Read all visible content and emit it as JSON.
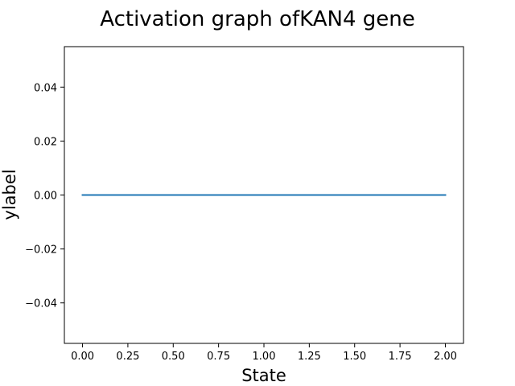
{
  "chart_data": {
    "type": "line",
    "title": "Activation graph ofKAN4 gene",
    "xlabel": "State",
    "ylabel": "ylabel",
    "xlim": [
      -0.1,
      2.1
    ],
    "ylim": [
      -0.055,
      0.055
    ],
    "xticks": [
      0.0,
      0.25,
      0.5,
      0.75,
      1.0,
      1.25,
      1.5,
      1.75,
      2.0
    ],
    "xtick_labels": [
      "0.00",
      "0.25",
      "0.50",
      "0.75",
      "1.00",
      "1.25",
      "1.50",
      "1.75",
      "2.00"
    ],
    "yticks": [
      -0.04,
      -0.02,
      0.0,
      0.02,
      0.04
    ],
    "ytick_labels": [
      "−0.04",
      "−0.02",
      "0.00",
      "0.02",
      "0.04"
    ],
    "grid": false,
    "series": [
      {
        "x": [
          0,
          1,
          2
        ],
        "y": [
          0,
          0,
          0
        ],
        "color": "#1f77b4"
      }
    ]
  }
}
